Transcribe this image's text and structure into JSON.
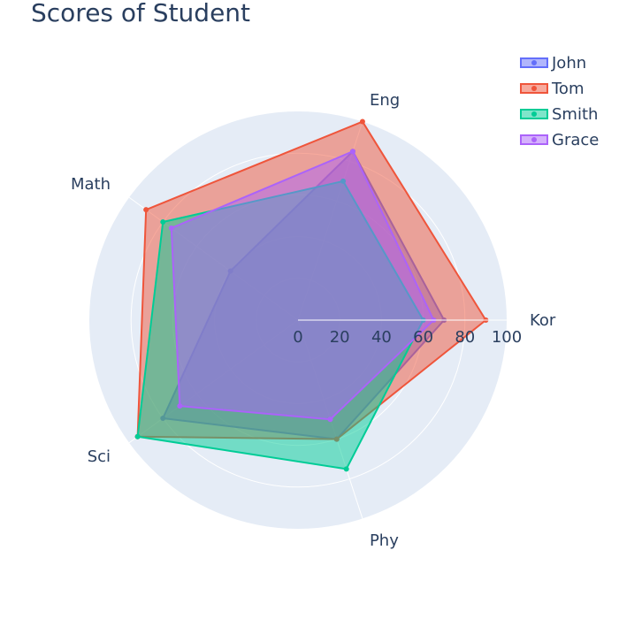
{
  "chart_data": {
    "type": "radar",
    "title": "Scores of Student",
    "axes": [
      "Kor",
      "Eng",
      "Math",
      "Sci",
      "Phy"
    ],
    "radial_range": [
      0,
      100
    ],
    "radial_ticks": [
      0,
      20,
      40,
      60,
      80,
      100
    ],
    "series": [
      {
        "name": "John",
        "values": [
          70,
          85,
          40,
          80,
          60
        ],
        "color": "#636efa"
      },
      {
        "name": "Tom",
        "values": [
          90,
          100,
          90,
          95,
          60
        ],
        "color": "#EF553B"
      },
      {
        "name": "Smith",
        "values": [
          60,
          70,
          80,
          95,
          75
        ],
        "color": "#00cc96"
      },
      {
        "name": "Grace",
        "values": [
          65,
          85,
          75,
          70,
          50
        ],
        "color": "#ab63fa"
      }
    ],
    "legend_position": "top-right",
    "polar_bg": "#e5ecf6",
    "grid": true
  }
}
